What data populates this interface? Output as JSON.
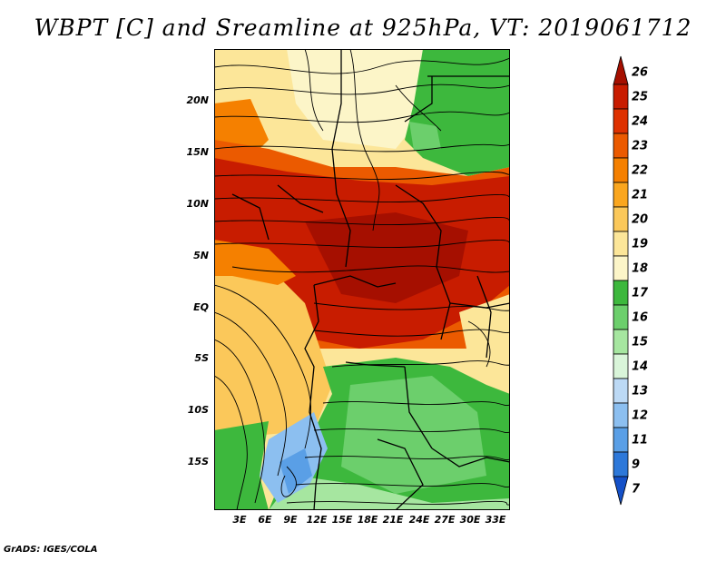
{
  "title": "WBPT [C] and Sreamline at 925hPa, VT: 2019061712",
  "footer": "GrADS: IGES/COLA",
  "lat_labels": [
    "20N",
    "15N",
    "10N",
    "5N",
    "EQ",
    "5S",
    "10S",
    "15S"
  ],
  "lon_labels": [
    "3E",
    "6E",
    "9E",
    "12E",
    "15E",
    "18E",
    "21E",
    "24E",
    "27E",
    "30E",
    "33E"
  ],
  "colorbar": {
    "levels": [
      "26",
      "25",
      "24",
      "23",
      "22",
      "21",
      "20",
      "19",
      "18",
      "17",
      "16",
      "15",
      "14",
      "13",
      "12",
      "11",
      "9",
      "7"
    ],
    "colors": [
      "#a50f00",
      "#c81c00",
      "#de3100",
      "#eb5a00",
      "#f58000",
      "#faa61e",
      "#fbc85a",
      "#fce699",
      "#fcf5c8",
      "#3db83d",
      "#6ccf6c",
      "#a6e6a0",
      "#d9f5d9",
      "#bcd9f5",
      "#8cbff0",
      "#5a9fe6",
      "#2d78d9",
      "#1450c8"
    ]
  },
  "map": {
    "lon_range": [
      0,
      35
    ],
    "lat_range": [
      -20,
      24
    ],
    "color_zones": [
      {
        "name": "sahara-north",
        "color": "#fce699"
      },
      {
        "name": "sahel-belt",
        "color": "#f58000"
      },
      {
        "name": "equatorial-core",
        "color": "#c81c00"
      },
      {
        "name": "southern-savanna",
        "color": "#6ccf6c"
      },
      {
        "name": "southwest-cool",
        "color": "#8cbff0"
      }
    ]
  }
}
